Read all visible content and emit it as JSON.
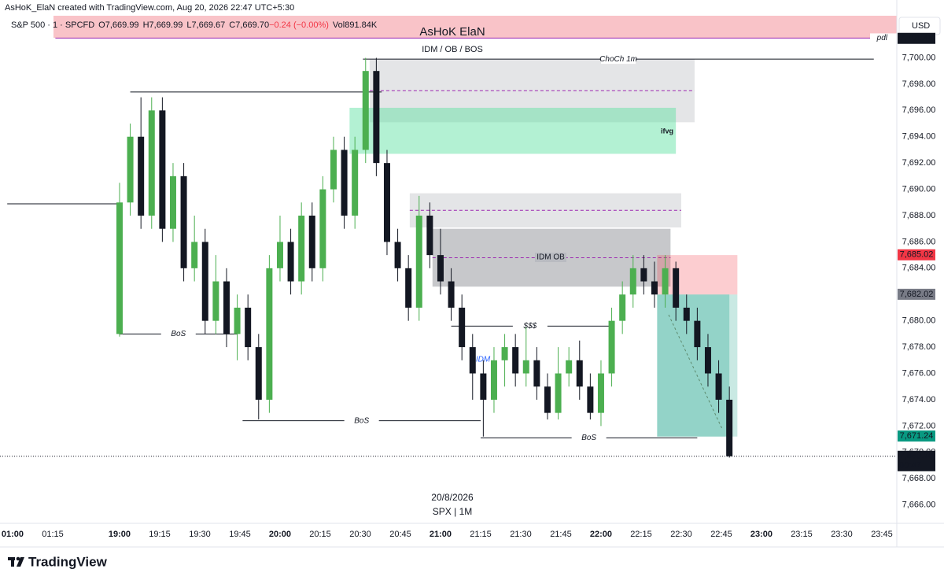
{
  "header": {
    "credit": "AsHoK_ElaN created with TradingView.com, Aug 20, 2026 22:47 UTC+5:30",
    "symbol": "S&P 500 · 1 · SPCFD",
    "ohlc": [
      {
        "k": "O",
        "v": "7,669.99"
      },
      {
        "k": "H",
        "v": "7,669.99"
      },
      {
        "k": "L",
        "v": "7,669.67"
      },
      {
        "k": "C",
        "v": "7,669.70"
      },
      {
        "k": "",
        "v": "−0.24 (−0.00%)"
      },
      {
        "k": "Vol",
        "v": "891.84K"
      }
    ],
    "banner": "AsHoK ElaN",
    "currency": "USD",
    "date": "20/8/2026",
    "ticker": "SPX | 1M",
    "brand": "TradingView"
  },
  "chart_data": {
    "type": "candlestick",
    "up_color": "#4caf50",
    "down_color": "#131722",
    "x": [
      0,
      4,
      8,
      12,
      16,
      20,
      24,
      28,
      32,
      36,
      40,
      44,
      48,
      52,
      56,
      60,
      64,
      68,
      72,
      76,
      80,
      84,
      88,
      92,
      96,
      100,
      104,
      108,
      112,
      116,
      120,
      124,
      128,
      132,
      136,
      140,
      144,
      148,
      152,
      156,
      160,
      164,
      168,
      172,
      176,
      180,
      184,
      188,
      192,
      196,
      200,
      204,
      208,
      212,
      216,
      220,
      224,
      228
    ],
    "open": [
      7679,
      7689,
      7694,
      7688,
      7696,
      7687,
      7691,
      7684,
      7686,
      7680,
      7683,
      7679,
      7681,
      7678,
      7674,
      7684,
      7686,
      7683,
      7688,
      7684,
      7690,
      7693,
      7688,
      7693,
      7699,
      7692,
      7686,
      7684,
      7681,
      7688,
      7685,
      7683,
      7681,
      7678,
      7676,
      7674,
      7677,
      7678,
      7676,
      7677,
      7675,
      7673,
      7676,
      7677,
      7675,
      7673,
      7676,
      7680,
      7682,
      7684,
      7683,
      7682,
      7684,
      7681,
      7680,
      7678,
      7676,
      7674
    ],
    "high": [
      7690.5,
      7695,
      7697,
      7697,
      7697,
      7692,
      7692,
      7688,
      7687,
      7685,
      7684,
      7682,
      7682,
      7679,
      7685,
      7688,
      7687,
      7689,
      7689,
      7691,
      7694,
      7694,
      7694,
      7700,
      7700,
      7693,
      7687,
      7685,
      7689.5,
      7689,
      7687,
      7684,
      7682,
      7679,
      7677,
      7678,
      7679,
      7679,
      7679.5,
      7678,
      7676,
      7678,
      7678,
      7678.5,
      7676,
      7677,
      7681,
      7683,
      7685,
      7685,
      7684.5,
      7685,
      7684.5,
      7682,
      7681,
      7679,
      7677,
      7675
    ],
    "low": [
      7678.8,
      7688,
      7687,
      7687,
      7686,
      7686,
      7683,
      7683,
      7679,
      7679,
      7678,
      7677,
      7677,
      7672.5,
      7673,
      7683,
      7682,
      7682,
      7683,
      7683,
      7689,
      7687,
      7687,
      7692,
      7691,
      7685,
      7683,
      7680,
      7680,
      7684,
      7682,
      7680,
      7677,
      7674,
      7671.2,
      7673,
      7675,
      7675,
      7675,
      7674,
      7672.5,
      7672.5,
      7675,
      7674,
      7672.5,
      7672,
      7675,
      7679,
      7681,
      7682,
      7681,
      7681,
      7680,
      7679,
      7677,
      7675,
      7673,
      7669.6
    ],
    "close": [
      7689,
      7694,
      7688,
      7696,
      7687,
      7691,
      7684,
      7686,
      7680,
      7683,
      7679,
      7681,
      7678,
      7674,
      7684,
      7686,
      7683,
      7688,
      7684,
      7690,
      7693,
      7688,
      7693,
      7699,
      7692,
      7686,
      7684,
      7681,
      7688,
      7685,
      7683,
      7681,
      7678,
      7676,
      7674,
      7677,
      7678,
      7676,
      7677,
      7675,
      7673,
      7676,
      7677,
      7675,
      7673,
      7676,
      7680,
      7682,
      7684,
      7683,
      7682,
      7684,
      7681,
      7680,
      7678,
      7676,
      7674,
      7669.7
    ],
    "xlim": [
      -44.7,
      290.6
    ],
    "xticks": [
      {
        "value": -40,
        "label": "01:00"
      },
      {
        "value": -25,
        "label": "01:15"
      },
      {
        "value": 0,
        "label": "19:00"
      },
      {
        "value": 15,
        "label": "19:15"
      },
      {
        "value": 30,
        "label": "19:30"
      },
      {
        "value": 45,
        "label": "19:45"
      },
      {
        "value": 60,
        "label": "20:00"
      },
      {
        "value": 75,
        "label": "20:15"
      },
      {
        "value": 90,
        "label": "20:30"
      },
      {
        "value": 105,
        "label": "20:45"
      },
      {
        "value": 120,
        "label": "21:00"
      },
      {
        "value": 135,
        "label": "21:15"
      },
      {
        "value": 150,
        "label": "21:30"
      },
      {
        "value": 165,
        "label": "21:45"
      },
      {
        "value": 180,
        "label": "22:00"
      },
      {
        "value": 195,
        "label": "22:15"
      },
      {
        "value": 210,
        "label": "22:30"
      },
      {
        "value": 225,
        "label": "22:45"
      },
      {
        "value": 240,
        "label": "23:00"
      },
      {
        "value": 255,
        "label": "23:15"
      },
      {
        "value": 270,
        "label": "23:30"
      },
      {
        "value": 285,
        "label": "23:45"
      }
    ],
    "ylim": [
      7664.6,
      7703.2
    ],
    "yticks": [
      {
        "value": 7666,
        "label": "7,666.00"
      },
      {
        "value": 7668,
        "label": "7,668.00"
      },
      {
        "value": 7670,
        "label": "7,670.00"
      },
      {
        "value": 7672,
        "label": "7,672.00"
      },
      {
        "value": 7674,
        "label": "7,674.00"
      },
      {
        "value": 7676,
        "label": "7,676.00"
      },
      {
        "value": 7678,
        "label": "7,678.00"
      },
      {
        "value": 7680,
        "label": "7,680.00"
      },
      {
        "value": 7682,
        "label": "7,682.00"
      },
      {
        "value": 7684,
        "label": "7,684.00"
      },
      {
        "value": 7686,
        "label": "7,686.00"
      },
      {
        "value": 7688,
        "label": "7,688.00"
      },
      {
        "value": 7690,
        "label": "7,690.00"
      },
      {
        "value": 7692,
        "label": "7,692.00"
      },
      {
        "value": 7694,
        "label": "7,694.00"
      },
      {
        "value": 7696,
        "label": "7,696.00"
      },
      {
        "value": 7698,
        "label": "7,698.00"
      },
      {
        "value": 7700,
        "label": "7,700.00"
      }
    ],
    "grid": false,
    "zones": [
      {
        "x": [
          93.5,
          215
        ],
        "price": [
          7699.9,
          7695.1
        ],
        "mid": 7697.5,
        "color": "rgba(190,192,198,0.42)"
      },
      {
        "x": [
          86,
          208
        ],
        "price": [
          7696.2,
          7692.7
        ],
        "color": "rgba(96,226,164,0.48)"
      },
      {
        "x": [
          108.5,
          210
        ],
        "price": [
          7689.7,
          7687.1
        ],
        "mid": 7688.4,
        "color": "rgba(190,192,198,0.42)"
      },
      {
        "x": [
          117,
          206
        ],
        "price": [
          7687.0,
          7682.6
        ],
        "mid": 7684.8,
        "color": "rgba(130,132,140,0.45)"
      },
      {
        "x": [
          201,
          231
        ],
        "price": [
          7685.0,
          7682.0
        ],
        "color": "rgba(242,54,69,0.25)"
      },
      {
        "x": [
          201,
          231
        ],
        "price": [
          7682.0,
          7671.2
        ],
        "color": "rgba(8,153,129,0.22)"
      },
      {
        "x": [
          201,
          228
        ],
        "price": [
          7682.0,
          7671.2
        ],
        "color": "rgba(8,153,129,0.28)"
      }
    ],
    "levels": [
      {
        "x": [
          91,
          282
        ],
        "price": 7699.9,
        "label": "ChoCh 1m"
      },
      {
        "x": [
          -42,
          0
        ],
        "price": 7688.9
      },
      {
        "x": [
          4,
          98
        ],
        "price": 7697.4
      },
      {
        "x": [
          0,
          44
        ],
        "price": 7679.0,
        "label": "BoS"
      },
      {
        "x": [
          46,
          135
        ],
        "price": 7672.4,
        "label": "BoS"
      },
      {
        "x": [
          135,
          216
        ],
        "price": 7671.1,
        "label": "BoS"
      },
      {
        "x": [
          124,
          183
        ],
        "price": 7679.6,
        "label": "$$$"
      },
      {
        "x": [
          -24,
          290.6
        ],
        "price": 7701.5,
        "label": "pdl"
      }
    ],
    "notes": [
      "IDM / OB / BOS",
      "ifvg",
      "IDM OB",
      "IDM"
    ],
    "price_labels": [
      {
        "value": 7701.48,
        "label": "7,701.48",
        "color": "#131722"
      },
      {
        "value": 7685.02,
        "label": "7,685.02",
        "color": "#f23645"
      },
      {
        "value": 7682.02,
        "label": "7,682.02",
        "color": "#787b86"
      },
      {
        "value": 7671.24,
        "label": "7,671.24",
        "color": "#089981"
      },
      {
        "value": 7669.7,
        "label": "7,669.70",
        "color": "#131722",
        "sub": "00:47"
      }
    ]
  }
}
